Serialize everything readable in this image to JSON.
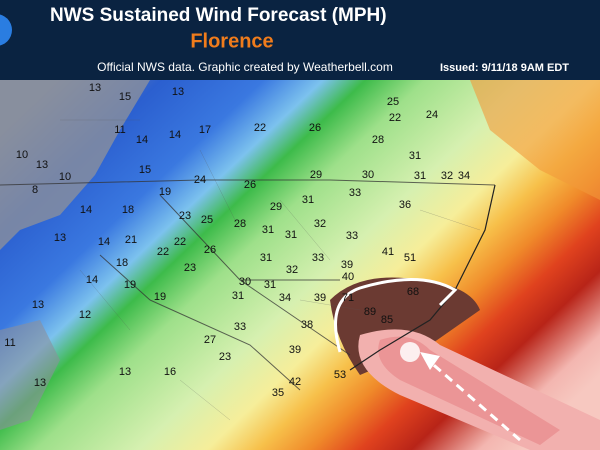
{
  "header": {
    "title": "NWS Sustained Wind Forecast (MPH)",
    "storm": "Florence",
    "credit": "Official NWS data. Graphic created by Weatherbell.com",
    "issued": "Issued: 9/11/18 9AM EDT"
  },
  "map": {
    "labels": [
      13,
      15,
      13,
      11,
      14,
      14,
      17,
      22,
      26,
      22,
      25,
      24,
      28,
      10,
      13,
      10,
      15,
      31,
      29,
      30,
      31,
      32,
      34,
      24,
      26,
      8,
      19,
      33,
      14,
      18,
      29,
      31,
      36,
      23,
      25,
      28,
      31,
      31,
      32,
      33,
      13,
      14,
      21,
      22,
      26,
      22,
      31,
      33,
      41,
      18,
      23,
      39,
      40,
      51,
      32,
      30,
      31,
      14,
      19,
      34,
      19,
      31,
      39,
      71,
      68,
      13,
      12,
      33,
      38,
      89,
      85,
      27,
      39,
      23,
      13,
      16,
      42,
      35,
      53,
      13,
      11
    ]
  }
}
